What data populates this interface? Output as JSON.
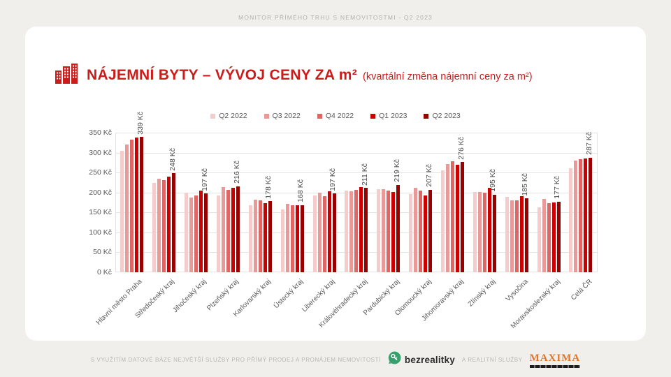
{
  "page": {
    "header": "MONITOR PŘÍMÉHO TRHU S NEMOVITOSTMI - Q2 2023"
  },
  "title": {
    "main": "NÁJEMNÍ BYTY – VÝVOJ CENY ZA m²",
    "subtitle": "(kvartální změna nájemní ceny za m²)"
  },
  "chart_data": {
    "type": "bar",
    "title": "NÁJEMNÍ BYTY – VÝVOJ CENY ZA m² (kvartální změna nájemní ceny za m²)",
    "categories": [
      "Hlavní město Praha",
      "Středočeský kraj",
      "Jihočeský kraj",
      "Plzeňský kraj",
      "Karlovarský kraj",
      "Ústecký kraj",
      "Liberecký kraj",
      "Královéhradecký kraj",
      "Pardubický kraj",
      "Olomoucký kraj",
      "Jihomoravský kraj",
      "Zlínský kraj",
      "Vysočina",
      "Moravskoslezský kraj",
      "Celá ČR"
    ],
    "series": [
      {
        "name": "Q2 2022",
        "color": "#f4cccc",
        "values": [
          305,
          224,
          200,
          193,
          168,
          158,
          192,
          204,
          209,
          196,
          256,
          202,
          189,
          162,
          261
        ]
      },
      {
        "name": "Q3 2022",
        "color": "#ea9999",
        "values": [
          320,
          234,
          188,
          214,
          182,
          172,
          200,
          203,
          208,
          212,
          272,
          202,
          180,
          183,
          280
        ]
      },
      {
        "name": "Q4 2022",
        "color": "#e06666",
        "values": [
          333,
          231,
          192,
          207,
          180,
          168,
          191,
          207,
          204,
          204,
          278,
          199,
          180,
          173,
          283
        ]
      },
      {
        "name": "Q1 2023",
        "color": "#cc0000",
        "values": [
          338,
          239,
          204,
          211,
          174,
          168,
          203,
          214,
          202,
          192,
          270,
          211,
          190,
          175,
          286
        ]
      },
      {
        "name": "Q2 2023",
        "color": "#990000",
        "values": [
          339,
          248,
          197,
          216,
          178,
          168,
          197,
          211,
          219,
          207,
          276,
          195,
          185,
          177,
          287
        ]
      }
    ],
    "bar_labels": [
      "339 Kč",
      "248 Kč",
      "197 Kč",
      "216 Kč",
      "178 Kč",
      "168 Kč",
      "197 Kč",
      "211 Kč",
      "219 Kč",
      "207 Kč",
      "276 Kč",
      "195 Kč",
      "185 Kč",
      "177 Kč",
      "287 Kč"
    ],
    "bar_labels_series": "Q2 2023",
    "ylim": [
      0,
      350
    ],
    "ytick_step": 50,
    "ytick_suffix": " Kč",
    "xlabel": "",
    "ylabel": "",
    "grid": true,
    "legend_position": "top"
  },
  "footer": {
    "caption": "S VYUŽITÍM DATOVÉ BÁZE NEJVĚTŠÍ SLUŽBY PRO PŘÍMÝ PRODEJ A PRONÁJEM NEMOVITOSTÍ",
    "bezrealitky_label": "bezrealitky",
    "middle_caption": "A REALITNÍ SLUŽBY",
    "maxima_label": "MAXIMA"
  },
  "colors": {
    "title_red": "#cb1b1b",
    "page_bg": "#f1efeb",
    "card_bg": "#ffffff",
    "gridline": "#e3e3e3",
    "axis_text": "#595959",
    "footer_text": "#b8b6b1",
    "bezrealitky_green": "#35a06b",
    "maxima_orange": "#e0762a"
  }
}
